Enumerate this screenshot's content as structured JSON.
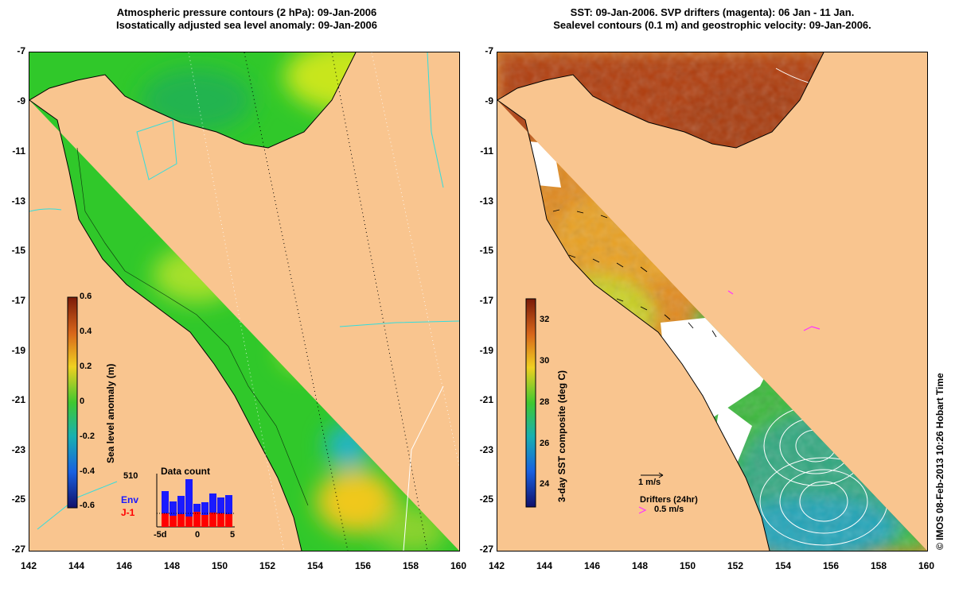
{
  "left_panel": {
    "title_line1": "Atmospheric pressure contours (2 hPa): 09-Jan-2006",
    "title_line2": "Isostatically adjusted sea level anomaly: 09-Jan-2006",
    "y_ticks": [
      "-7",
      "-9",
      "-11",
      "-13",
      "-15",
      "-17",
      "-19",
      "-21",
      "-23",
      "-25",
      "-27"
    ],
    "x_ticks": [
      "142",
      "144",
      "146",
      "148",
      "150",
      "152",
      "154",
      "156",
      "158",
      "160"
    ],
    "colorbar": {
      "label": "Sea level anomaly (m)",
      "ticks": [
        "0.6",
        "0.4",
        "0.2",
        "0",
        "-0.2",
        "-0.4",
        "-0.6"
      ],
      "range": [
        -0.6,
        0.6
      ]
    },
    "inset": {
      "title": "Data count",
      "count_label": "510",
      "series_env": "Env",
      "series_j1": "J-1",
      "x_ticks": [
        "-5d",
        "0",
        "5"
      ],
      "env_color": "#1a1aff",
      "j1_color": "#ff0000"
    }
  },
  "right_panel": {
    "title_line1": "SST: 09-Jan-2006. SVP drifters (magenta): 06 Jan - 11 Jan.",
    "title_line2": "Sealevel contours (0.1 m) and geostrophic velocity: 09-Jan-2006.",
    "y_ticks": [
      "-7",
      "-9",
      "-11",
      "-13",
      "-15",
      "-17",
      "-19",
      "-21",
      "-23",
      "-25",
      "-27"
    ],
    "x_ticks": [
      "142",
      "144",
      "146",
      "148",
      "150",
      "152",
      "154",
      "156",
      "158",
      "160"
    ],
    "colorbar": {
      "label": "3-day SST composite (deg C)",
      "ticks": [
        "32",
        "30",
        "28",
        "26",
        "24"
      ],
      "range": [
        23,
        33
      ]
    },
    "velocity_scale": "1 m/s",
    "drifters_label": "Drifters (24hr)",
    "drifters_speed": "0.5 m/s",
    "drifter_color": "#ff33ff"
  },
  "credit": "© IMOS 08-Feb-2013 10:26 Hobart Time",
  "colors": {
    "land": "#f9c58f",
    "ocean_green": "#33cc22",
    "anomaly_yellow": "#c8e61e",
    "sst_warm": "#d9651a",
    "cloud_white": "#ffffff"
  }
}
